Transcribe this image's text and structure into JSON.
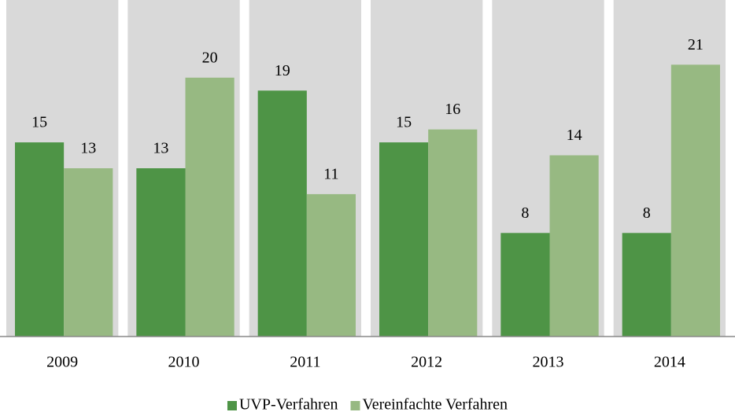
{
  "chart_data": {
    "type": "bar",
    "categories": [
      "2009",
      "2010",
      "2011",
      "2012",
      "2013",
      "2014"
    ],
    "series": [
      {
        "name": "UVP-Verfahren",
        "color": "#4e9446",
        "values": [
          15,
          13,
          19,
          15,
          8,
          8
        ]
      },
      {
        "name": "Vereinfachte Verfahren",
        "color": "#97b982",
        "values": [
          13,
          20,
          11,
          16,
          14,
          21
        ]
      }
    ],
    "ylim": [
      0,
      26
    ],
    "background_bands": "#d9d9d9",
    "legend": "bottom"
  }
}
